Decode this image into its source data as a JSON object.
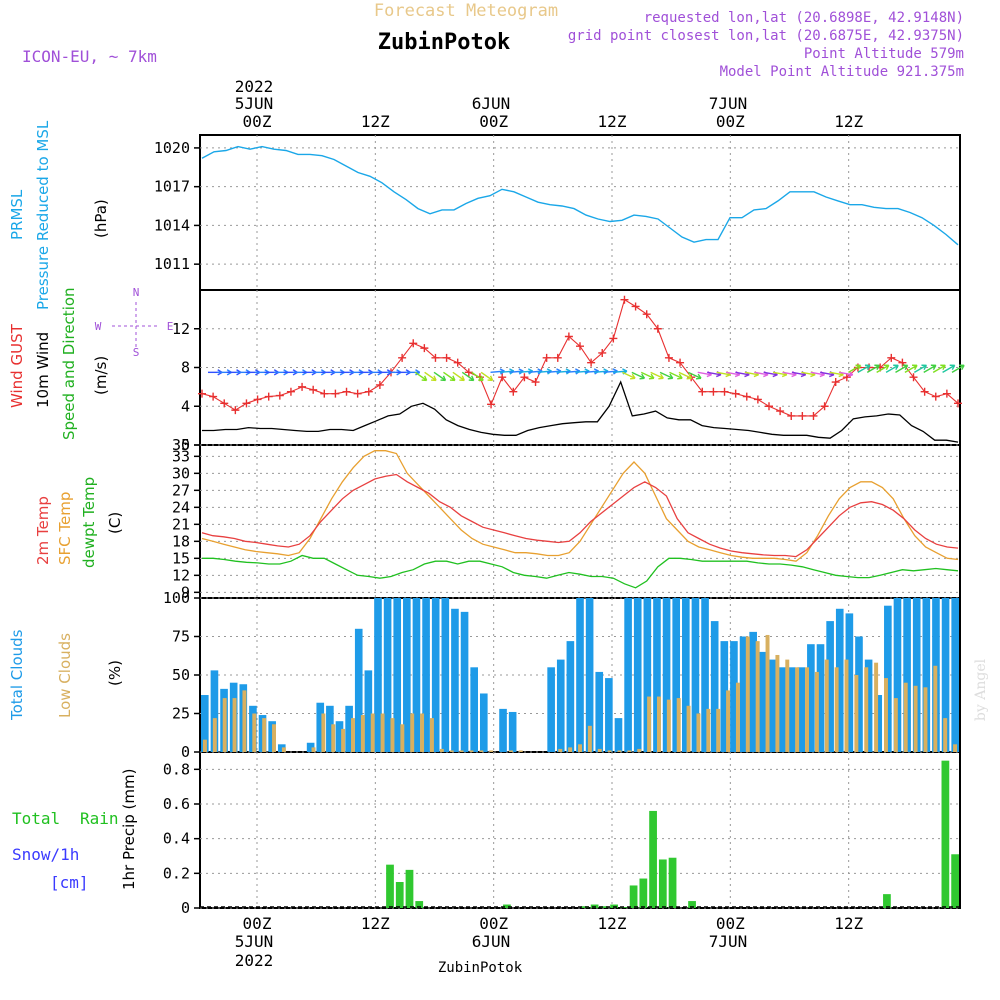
{
  "header": {
    "title": "Forecast Meteogram",
    "station": "ZubinPotok",
    "model": "ICON-EU, ~ 7km",
    "requested": "requested lon,lat (20.6898E, 42.9148N)",
    "closest": "grid point closest lon,lat (20.6875E, 42.9375N)",
    "point_alt": "Point Altitude 579m",
    "model_alt": "Model Point Altitude 921.375m",
    "footer_station": "ZubinPotok",
    "watermark": "by Angel"
  },
  "time_axis": {
    "top": {
      "year": "2022",
      "day1": "5JUN",
      "day2": "6JUN",
      "day3": "7JUN"
    },
    "hour_ticks": [
      "00Z",
      "12Z",
      "00Z",
      "12Z",
      "00Z",
      "12Z"
    ],
    "bottom": {
      "day1": "5JUN",
      "day2": "6JUN",
      "day3": "7JUN",
      "year": "2022"
    }
  },
  "labels": {
    "p1": [
      "PRMSL",
      "Pressure Reduced to MSL",
      "(hPa)"
    ],
    "p2": [
      "Wind GUST",
      "10m Wind",
      "Speed and Direction",
      "(m/s)"
    ],
    "p2_rose": {
      "n": "N",
      "s": "S",
      "e": "E",
      "w": "W"
    },
    "p3": [
      "2m Temp",
      "SFC Temp",
      "dewpt Temp",
      "(C)"
    ],
    "p4": [
      "Total Clouds",
      "Low Clouds",
      "(%)"
    ],
    "p5": [
      "Total",
      "Rain",
      "Snow/1h",
      "[cm]",
      "1hr Precip (mm)"
    ]
  },
  "colors": {
    "pressure": "#1aa7e8",
    "gust": "#e83030",
    "wind": "#000000",
    "temp2m": "#e84040",
    "sfc": "#e8a030",
    "dew": "#20c020",
    "total_clouds": "#1e9be8",
    "low_clouds": "#d8b060",
    "rain": "#30c830",
    "title": "#e8c88a",
    "purple": "#a050d8"
  },
  "chart_data": [
    {
      "type": "line",
      "name": "pressure",
      "ylim": [
        1009,
        1021
      ],
      "yticks": [
        "1020",
        "1017",
        "1014",
        "1011"
      ],
      "x_hours": "-6 to 57, step 1 (hours from 5JUN 00Z)",
      "values": [
        1019.2,
        1019.7,
        1019.8,
        1020.1,
        1019.9,
        1020.1,
        1019.9,
        1019.8,
        1019.5,
        1019.5,
        1019.4,
        1019.1,
        1018.6,
        1018.1,
        1017.8,
        1017.3,
        1016.6,
        1016.0,
        1015.3,
        1014.9,
        1015.2,
        1015.2,
        1015.7,
        1016.1,
        1016.3,
        1016.8,
        1016.6,
        1016.2,
        1015.8,
        1015.6,
        1015.5,
        1015.3,
        1014.8,
        1014.5,
        1014.3,
        1014.4,
        1014.8,
        1014.7,
        1014.5,
        1013.8,
        1013.1,
        1012.7,
        1012.9,
        1012.9,
        1014.6,
        1014.6,
        1015.2,
        1015.3,
        1015.9,
        1016.6,
        1016.6,
        1016.6,
        1016.2,
        1015.9,
        1015.6,
        1015.6,
        1015.4,
        1015.3,
        1015.3,
        1015.0,
        1014.6,
        1014.0,
        1013.3,
        1012.5
      ]
    },
    {
      "type": "line",
      "name": "wind",
      "ylim": [
        0,
        16
      ],
      "yticks": [
        "12",
        "8",
        "4",
        "0"
      ],
      "gust": [
        5.3,
        5.0,
        4.3,
        3.6,
        4.3,
        4.7,
        5.0,
        5.1,
        5.5,
        6.0,
        5.7,
        5.3,
        5.3,
        5.5,
        5.3,
        5.5,
        6.2,
        7.5,
        9.0,
        10.5,
        10.0,
        9.0,
        9.0,
        8.5,
        7.5,
        7.0,
        4.2,
        7.0,
        5.5,
        7.0,
        6.5,
        9.0,
        9.0,
        11.2,
        10.2,
        8.5,
        9.5,
        11.0,
        15.0,
        14.3,
        13.5,
        12.0,
        9.0,
        8.5,
        7.0,
        5.5,
        5.5,
        5.5,
        5.3,
        5.0,
        4.7,
        4.0,
        3.5,
        3.0,
        3.0,
        3.0,
        4.0,
        6.5,
        7.0,
        8.0,
        8.0,
        8.0,
        9.0,
        8.5,
        7.0,
        5.5,
        5.0,
        5.3,
        4.3
      ],
      "speed": [
        1.5,
        1.5,
        1.6,
        1.6,
        1.8,
        1.7,
        1.7,
        1.6,
        1.5,
        1.4,
        1.4,
        1.6,
        1.6,
        1.5,
        2.0,
        2.5,
        3.0,
        3.2,
        4.0,
        4.3,
        3.7,
        2.6,
        2.0,
        1.6,
        1.3,
        1.1,
        1.0,
        1.0,
        1.5,
        1.8,
        2.0,
        2.2,
        2.3,
        2.4,
        2.4,
        4.0,
        6.5,
        3.0,
        3.2,
        3.5,
        2.8,
        2.6,
        2.6,
        2.0,
        1.8,
        1.7,
        1.6,
        1.5,
        1.3,
        1.1,
        1.0,
        1.0,
        1.0,
        0.8,
        0.7,
        1.5,
        2.7,
        2.9,
        3.0,
        3.2,
        3.1,
        2.0,
        1.4,
        0.5,
        0.5,
        0.3
      ],
      "direction_arrows_count": 80
    },
    {
      "type": "line",
      "name": "temperature",
      "ylim": [
        8,
        35
      ],
      "yticks": [
        "35",
        "33",
        "30",
        "27",
        "24",
        "21",
        "18",
        "15",
        "12",
        "9"
      ],
      "temp2m": [
        19.5,
        19.0,
        18.8,
        18.5,
        18.0,
        17.8,
        17.5,
        17.2,
        17.0,
        17.5,
        19.0,
        21.5,
        23.5,
        25.5,
        27.0,
        28.0,
        29.0,
        29.5,
        29.8,
        28.5,
        27.5,
        26.5,
        25.0,
        24.0,
        22.5,
        21.5,
        20.5,
        20.0,
        19.5,
        19.0,
        18.5,
        18.2,
        18.0,
        17.8,
        18.0,
        19.5,
        21.5,
        23.0,
        24.5,
        26.0,
        27.5,
        28.5,
        27.5,
        26.0,
        22.0,
        19.5,
        18.5,
        17.5,
        16.8,
        16.3,
        16.0,
        15.8,
        15.6,
        15.5,
        15.5,
        15.3,
        16.5,
        18.5,
        20.5,
        22.5,
        24.0,
        24.8,
        25.0,
        24.5,
        23.5,
        22.0,
        20.0,
        18.5,
        17.5,
        17.0,
        16.8
      ],
      "sfc": [
        18.5,
        18.0,
        17.5,
        17.0,
        16.5,
        16.2,
        16.0,
        15.8,
        15.5,
        16.0,
        18.5,
        22.0,
        25.5,
        28.5,
        31.0,
        33.0,
        34.0,
        34.0,
        33.5,
        30.0,
        28.0,
        26.0,
        24.0,
        22.0,
        20.0,
        18.5,
        17.5,
        17.0,
        16.5,
        16.0,
        16.0,
        15.8,
        15.5,
        15.5,
        16.0,
        18.0,
        21.0,
        24.0,
        27.0,
        30.0,
        32.0,
        30.0,
        26.0,
        22.0,
        20.0,
        18.0,
        17.0,
        16.5,
        16.0,
        15.5,
        15.2,
        15.0,
        15.0,
        15.0,
        14.8,
        14.5,
        16.0,
        19.0,
        22.5,
        25.5,
        27.5,
        28.5,
        28.5,
        27.5,
        25.5,
        22.0,
        19.0,
        17.0,
        16.0,
        15.0,
        14.8
      ],
      "dew": [
        15.0,
        15.0,
        14.8,
        14.5,
        14.3,
        14.2,
        14.0,
        14.0,
        14.5,
        15.5,
        15.0,
        15.0,
        14.0,
        13.0,
        12.0,
        11.8,
        11.5,
        11.8,
        12.5,
        13.0,
        14.0,
        14.5,
        14.5,
        14.0,
        14.5,
        14.5,
        14.0,
        13.5,
        12.5,
        12.0,
        11.8,
        11.5,
        12.0,
        12.5,
        12.2,
        11.8,
        11.8,
        11.5,
        10.5,
        9.8,
        11.0,
        13.5,
        15.0,
        15.0,
        14.8,
        14.5,
        14.5,
        14.5,
        14.5,
        14.5,
        14.2,
        14.0,
        14.0,
        13.8,
        13.5,
        13.0,
        12.5,
        12.0,
        11.8,
        11.6,
        11.6,
        12.0,
        12.5,
        13.0,
        12.8,
        13.0,
        13.2,
        13.0,
        12.8
      ]
    },
    {
      "type": "bar",
      "name": "clouds",
      "ylim": [
        0,
        100
      ],
      "yticks": [
        "100",
        "75",
        "50",
        "25",
        "0"
      ],
      "x_hours": "-6 to 57, step 1 (hours from 5JUN 00Z)",
      "total": [
        37,
        53,
        41,
        45,
        44,
        30,
        24,
        20,
        5,
        0,
        0,
        6,
        32,
        30,
        20,
        30,
        80,
        53,
        100,
        100,
        100,
        100,
        100,
        100,
        100,
        100,
        93,
        91,
        55,
        38,
        0,
        28,
        26,
        0,
        0,
        0,
        55,
        60,
        72,
        100,
        100,
        52,
        48,
        22,
        100,
        100,
        100,
        100,
        100,
        100,
        100,
        100,
        100,
        85,
        72,
        72,
        75,
        78,
        65,
        60,
        55,
        55,
        55,
        70,
        70,
        85,
        93,
        90,
        75,
        60,
        37,
        95,
        100,
        100,
        100,
        100,
        100,
        100,
        100
      ],
      "low": [
        8,
        22,
        35,
        35,
        40,
        25,
        22,
        18,
        3,
        0,
        0,
        3,
        25,
        18,
        15,
        22,
        24,
        25,
        25,
        22,
        18,
        25,
        25,
        22,
        2,
        1,
        1,
        1,
        1,
        1,
        0,
        1,
        1,
        0,
        0,
        0,
        2,
        3,
        5,
        17,
        2,
        1,
        1,
        1,
        2,
        36,
        36,
        34,
        35,
        30,
        25,
        28,
        28,
        40,
        45,
        75,
        72,
        76,
        63,
        60,
        55,
        55,
        52,
        60,
        55,
        60,
        50,
        55,
        58,
        48,
        35,
        45,
        43,
        42,
        56,
        22,
        5
      ]
    },
    {
      "type": "bar",
      "name": "precip",
      "ylim": [
        0,
        0.9
      ],
      "yticks": [
        "0.8",
        "0.6",
        "0.4",
        "0.2",
        "0"
      ],
      "x_hours": "-6 to 57, step 1 (hours from 5JUN 00Z)",
      "rain": [
        0,
        0,
        0,
        0,
        0,
        0,
        0,
        0,
        0,
        0,
        0,
        0,
        0,
        0,
        0,
        0,
        0,
        0,
        0,
        0.25,
        0.15,
        0.22,
        0.04,
        0,
        0,
        0,
        0,
        0,
        0,
        0,
        0,
        0.02,
        0,
        0,
        0,
        0,
        0,
        0,
        0,
        0.01,
        0.02,
        0.01,
        0.02,
        0.005,
        0.13,
        0.17,
        0.56,
        0.28,
        0.29,
        0,
        0.04,
        0,
        0,
        0,
        0,
        0,
        0,
        0,
        0,
        0,
        0,
        0,
        0,
        0,
        0,
        0,
        0,
        0,
        0,
        0,
        0.08,
        0,
        0,
        0,
        0,
        0,
        0.85,
        0.31
      ]
    }
  ]
}
